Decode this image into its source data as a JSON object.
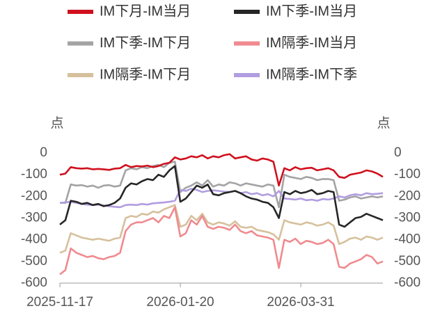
{
  "chart_data": {
    "type": "line",
    "y_label": "点",
    "y2_label": "点",
    "ylim": [
      -600,
      0
    ],
    "yticks": [
      0,
      -100,
      -200,
      -300,
      -400,
      -500,
      -600
    ],
    "y2lim": [
      -600,
      0
    ],
    "y2ticks": [
      0,
      -100,
      -200,
      -300,
      -400,
      -500,
      -600
    ],
    "categories": [
      "2025-11-17",
      null,
      null,
      null,
      null,
      null,
      null,
      null,
      null,
      null,
      null,
      null,
      null,
      null,
      null,
      null,
      null,
      null,
      null,
      null,
      null,
      null,
      "2026-01-20",
      null,
      null,
      null,
      null,
      null,
      null,
      null,
      null,
      null,
      null,
      null,
      null,
      null,
      null,
      null,
      null,
      null,
      null,
      null,
      null,
      null,
      "2026-03-31",
      null,
      null,
      null,
      null,
      null,
      null,
      null,
      null,
      null,
      null,
      null,
      null,
      null,
      null,
      null
    ],
    "series": [
      {
        "name": "IM下月-IM当月",
        "color": "#d0101e",
        "values": [
          -100,
          -95,
          -65,
          -70,
          -72,
          -70,
          -75,
          -73,
          -75,
          -78,
          -72,
          -70,
          -55,
          -65,
          -60,
          -62,
          -58,
          -65,
          -60,
          -50,
          -45,
          -20,
          -30,
          -25,
          -15,
          -20,
          -10,
          -25,
          -15,
          -20,
          -10,
          -5,
          -25,
          -20,
          -15,
          -30,
          -35,
          -25,
          -30,
          -40,
          -150,
          -70,
          -80,
          -65,
          -75,
          -70,
          -68,
          -80,
          -75,
          -70,
          -80,
          -110,
          -115,
          -100,
          -95,
          -90,
          -80,
          -85,
          -95,
          -110
        ]
      },
      {
        "name": "IM下季-IM当月",
        "color": "#262626",
        "values": [
          -330,
          -310,
          -220,
          -225,
          -235,
          -230,
          -240,
          -235,
          -245,
          -240,
          -230,
          -210,
          -160,
          -140,
          -145,
          -130,
          -120,
          -125,
          -100,
          -110,
          -80,
          -60,
          -225,
          -210,
          -180,
          -150,
          -160,
          -145,
          -190,
          -195,
          -185,
          -180,
          -175,
          -185,
          -200,
          -210,
          -215,
          -225,
          -230,
          -250,
          -300,
          -180,
          -190,
          -175,
          -185,
          -180,
          -170,
          -190,
          -185,
          -175,
          -180,
          -330,
          -340,
          -320,
          -300,
          -295,
          -280,
          -290,
          -300,
          -310
        ]
      },
      {
        "name": "IM下季-IM下月",
        "color": "#a3a3a3",
        "values": [
          -230,
          -230,
          -145,
          -150,
          -148,
          -155,
          -150,
          -160,
          -150,
          -148,
          -155,
          -150,
          -80,
          -70,
          -75,
          -65,
          -70,
          -60,
          -55,
          -65,
          -45,
          -40,
          -180,
          -160,
          -150,
          -135,
          -150,
          -125,
          -155,
          -145,
          -150,
          -135,
          -140,
          -150,
          -140,
          -145,
          -150,
          -155,
          -145,
          -150,
          -250,
          -100,
          -110,
          -115,
          -120,
          -110,
          -115,
          -125,
          -120,
          -120,
          -125,
          -220,
          -215,
          -205,
          -200,
          -210,
          -205,
          -200,
          -205,
          -200
        ]
      },
      {
        "name": "IM隔季-IM当月",
        "color": "#f08a8f",
        "values": [
          -560,
          -540,
          -440,
          -460,
          -470,
          -480,
          -475,
          -485,
          -490,
          -480,
          -475,
          -460,
          -360,
          -330,
          -320,
          -320,
          -310,
          -300,
          -320,
          -290,
          -300,
          -250,
          -385,
          -370,
          -310,
          -330,
          -290,
          -340,
          -350,
          -340,
          -345,
          -355,
          -330,
          -360,
          -370,
          -360,
          -380,
          -385,
          -390,
          -400,
          -530,
          -400,
          -410,
          -395,
          -420,
          -405,
          -410,
          -420,
          -415,
          -400,
          -420,
          -525,
          -530,
          -510,
          -500,
          -490,
          -470,
          -480,
          -510,
          -500
        ]
      },
      {
        "name": "IM隔季-IM下月",
        "color": "#d6c09c",
        "values": [
          -460,
          -450,
          -370,
          -380,
          -390,
          -395,
          -400,
          -395,
          -400,
          -405,
          -395,
          -390,
          -300,
          -290,
          -295,
          -280,
          -285,
          -270,
          -275,
          -260,
          -250,
          -240,
          -340,
          -330,
          -290,
          -310,
          -280,
          -320,
          -330,
          -320,
          -325,
          -335,
          -315,
          -340,
          -345,
          -340,
          -355,
          -360,
          -365,
          -375,
          -400,
          -310,
          -320,
          -325,
          -330,
          -320,
          -325,
          -335,
          -330,
          -320,
          -335,
          -420,
          -410,
          -395,
          -390,
          -400,
          -385,
          -390,
          -400,
          -390
        ]
      },
      {
        "name": "IM隔季-IM下季",
        "color": "#b19de0",
        "values": [
          -230,
          -228,
          -225,
          -230,
          -235,
          -238,
          -240,
          -238,
          -242,
          -245,
          -248,
          -250,
          -240,
          -238,
          -240,
          -235,
          -238,
          -232,
          -230,
          -228,
          -225,
          -220,
          -170,
          -175,
          -165,
          -170,
          -180,
          -175,
          -172,
          -175,
          -178,
          -180,
          -175,
          -185,
          -180,
          -190,
          -185,
          -195,
          -190,
          -200,
          -175,
          -210,
          -212,
          -215,
          -210,
          -218,
          -215,
          -220,
          -212,
          -215,
          -210,
          -200,
          -205,
          -195,
          -190,
          -195,
          -185,
          -190,
          -188,
          -185
        ]
      }
    ]
  }
}
